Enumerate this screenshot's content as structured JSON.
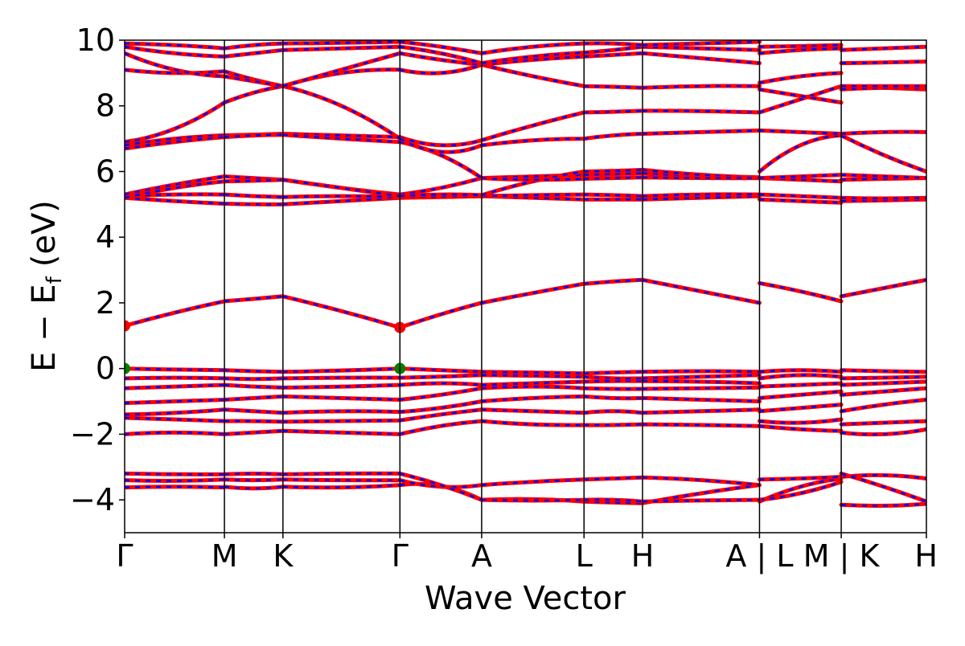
{
  "chart_data": {
    "type": "line",
    "title": "",
    "xlabel": "Wave Vector",
    "ylabel_main": "E − E",
    "ylabel_sub": "f",
    "ylabel_unit": "(eV)",
    "ylim": [
      -5,
      10
    ],
    "yticks": [
      -4,
      -2,
      0,
      2,
      4,
      6,
      8,
      10
    ],
    "ytick_labels": [
      "−4",
      "−2",
      "0",
      "2",
      "4",
      "6",
      "8",
      "10"
    ],
    "xlim": [
      0,
      9.32
    ],
    "kpoints": [
      {
        "label": "Γ",
        "x": 0
      },
      {
        "label": "M",
        "x": 1.16
      },
      {
        "label": "K",
        "x": 1.84
      },
      {
        "label": "Γ",
        "x": 3.2
      },
      {
        "label": "A",
        "x": 4.15
      },
      {
        "label": "L",
        "x": 5.34
      },
      {
        "label": "H",
        "x": 6.02
      },
      {
        "label": "A | L",
        "x": 7.38
      },
      {
        "label": "M | K",
        "x": 8.33
      },
      {
        "label": "H",
        "x": 9.32
      }
    ],
    "segments": [
      {
        "x0": 0.0,
        "x1": 1.16
      },
      {
        "x0": 1.16,
        "x1": 1.84
      },
      {
        "x0": 1.84,
        "x1": 3.2
      },
      {
        "x0": 3.2,
        "x1": 4.15
      },
      {
        "x0": 4.15,
        "x1": 5.34
      },
      {
        "x0": 5.34,
        "x1": 6.02
      },
      {
        "x0": 6.02,
        "x1": 7.38
      },
      {
        "x0": 7.38,
        "x1": 8.33
      },
      {
        "x0": 8.33,
        "x1": 9.32
      }
    ],
    "series": [
      {
        "color": "#ff0000",
        "style": "solid",
        "role": "spin-up"
      },
      {
        "color": "#0000ff",
        "style": "dashed",
        "role": "spin-down"
      }
    ],
    "bands": [
      [
        [
          -3.62,
          -3.6,
          -3.62
        ],
        [
          -3.6,
          -3.65,
          -3.6
        ],
        [
          -3.6,
          -3.62,
          -3.55
        ],
        [
          -3.55,
          -3.58,
          -4.0
        ],
        [
          -4.0,
          -3.98,
          -4.05
        ],
        [
          -4.05,
          -4.08,
          -4.1
        ],
        [
          -4.1,
          -3.8,
          -3.55
        ],
        [
          -4.05,
          -3.6,
          -3.35
        ],
        [
          -4.15,
          -4.18,
          -4.12
        ]
      ],
      [
        [
          -3.4,
          -3.42,
          -3.38
        ],
        [
          -3.38,
          -3.4,
          -3.38
        ],
        [
          -3.38,
          -3.4,
          -3.4
        ],
        [
          -3.4,
          -3.6,
          -3.55
        ],
        [
          -3.55,
          -3.45,
          -3.38
        ],
        [
          -3.38,
          -3.35,
          -3.32
        ],
        [
          -3.32,
          -3.4,
          -3.55
        ],
        [
          -4.0,
          -3.8,
          -3.45
        ],
        [
          -3.3,
          -3.25,
          -3.35
        ]
      ],
      [
        [
          -3.2,
          -3.22,
          -3.22
        ],
        [
          -3.22,
          -3.2,
          -3.22
        ],
        [
          -3.22,
          -3.2,
          -3.2
        ],
        [
          -3.2,
          -3.55,
          -4.0
        ],
        [
          -4.0,
          -4.02,
          -4.0
        ],
        [
          -4.0,
          -4.0,
          -4.05
        ],
        [
          -4.05,
          -4.02,
          -4.0
        ],
        [
          -3.38,
          -3.35,
          -3.3
        ],
        [
          -3.2,
          -3.6,
          -4.05
        ]
      ],
      [
        [
          -2.0,
          -1.95,
          -2.0
        ],
        [
          -2.0,
          -1.95,
          -1.9
        ],
        [
          -1.9,
          -1.95,
          -2.0
        ],
        [
          -2.0,
          -1.75,
          -1.6
        ],
        [
          -1.6,
          -1.7,
          -1.72
        ],
        [
          -1.72,
          -1.72,
          -1.7
        ],
        [
          -1.7,
          -1.72,
          -1.75
        ],
        [
          -1.75,
          -1.85,
          -1.9
        ],
        [
          -1.95,
          -2.0,
          -1.85
        ]
      ],
      [
        [
          -1.5,
          -1.55,
          -1.6
        ],
        [
          -1.6,
          -1.6,
          -1.62
        ],
        [
          -1.62,
          -1.6,
          -1.58
        ],
        [
          -1.58,
          -1.4,
          -1.25
        ],
        [
          -1.25,
          -1.3,
          -1.35
        ],
        [
          -1.35,
          -1.3,
          -1.35
        ],
        [
          -1.35,
          -1.3,
          -1.25
        ],
        [
          -1.6,
          -1.65,
          -1.55
        ],
        [
          -1.7,
          -1.65,
          -1.6
        ]
      ],
      [
        [
          -1.4,
          -1.35,
          -1.25
        ],
        [
          -1.25,
          -1.3,
          -1.35
        ],
        [
          -1.35,
          -1.3,
          -1.32
        ],
        [
          -1.32,
          -1.2,
          -1.0
        ],
        [
          -1.0,
          -0.9,
          -0.85
        ],
        [
          -0.85,
          -0.9,
          -0.9
        ],
        [
          -0.9,
          -0.95,
          -1.0
        ],
        [
          -1.3,
          -1.2,
          -1.1
        ],
        [
          -1.3,
          -1.1,
          -0.95
        ]
      ],
      [
        [
          -1.05,
          -1.0,
          -0.95
        ],
        [
          -0.95,
          -0.9,
          -0.85
        ],
        [
          -0.85,
          -0.9,
          -0.95
        ],
        [
          -0.95,
          -0.8,
          -0.6
        ],
        [
          -0.6,
          -0.55,
          -0.6
        ],
        [
          -0.6,
          -0.62,
          -0.62
        ],
        [
          -0.62,
          -0.6,
          -0.58
        ],
        [
          -0.9,
          -0.8,
          -0.7
        ],
        [
          -0.8,
          -0.7,
          -0.6
        ]
      ],
      [
        [
          -0.6,
          -0.55,
          -0.5
        ],
        [
          -0.5,
          -0.55,
          -0.58
        ],
        [
          -0.58,
          -0.55,
          -0.5
        ],
        [
          -0.5,
          -0.45,
          -0.5
        ],
        [
          -0.5,
          -0.45,
          -0.4
        ],
        [
          -0.4,
          -0.38,
          -0.38
        ],
        [
          -0.38,
          -0.4,
          -0.45
        ],
        [
          -0.55,
          -0.5,
          -0.45
        ],
        [
          -0.5,
          -0.45,
          -0.4
        ]
      ],
      [
        [
          -0.3,
          -0.28,
          -0.3
        ],
        [
          -0.3,
          -0.32,
          -0.3
        ],
        [
          -0.3,
          -0.28,
          -0.28
        ],
        [
          -0.28,
          -0.25,
          -0.2
        ],
        [
          -0.2,
          -0.22,
          -0.25
        ],
        [
          -0.25,
          -0.3,
          -0.3
        ],
        [
          -0.3,
          -0.25,
          -0.2
        ],
        [
          -0.3,
          -0.2,
          -0.25
        ],
        [
          -0.3,
          -0.28,
          -0.25
        ]
      ],
      [
        [
          0.0,
          -0.03,
          -0.05
        ],
        [
          -0.05,
          -0.08,
          -0.1
        ],
        [
          -0.1,
          -0.06,
          0.0
        ],
        [
          0.0,
          -0.05,
          -0.1
        ],
        [
          -0.1,
          -0.12,
          -0.15
        ],
        [
          -0.15,
          -0.12,
          -0.1
        ],
        [
          -0.1,
          -0.08,
          -0.1
        ],
        [
          -0.1,
          -0.05,
          -0.1
        ],
        [
          -0.05,
          -0.08,
          -0.1
        ]
      ],
      [
        [
          1.3,
          1.7,
          2.05
        ],
        [
          2.05,
          2.12,
          2.2
        ],
        [
          2.2,
          1.75,
          1.25
        ],
        [
          1.25,
          1.65,
          2.0
        ],
        [
          2.0,
          2.3,
          2.58
        ],
        [
          2.58,
          2.65,
          2.7
        ],
        [
          2.7,
          2.35,
          2.0
        ],
        [
          2.6,
          2.35,
          2.05
        ],
        [
          2.2,
          2.45,
          2.7
        ]
      ],
      [
        [
          5.2,
          5.1,
          5.02
        ],
        [
          5.02,
          5.0,
          5.0
        ],
        [
          5.0,
          5.1,
          5.2
        ],
        [
          5.2,
          5.22,
          5.25
        ],
        [
          5.25,
          5.2,
          5.15
        ],
        [
          5.15,
          5.15,
          5.15
        ],
        [
          5.15,
          5.2,
          5.25
        ],
        [
          5.15,
          5.1,
          5.05
        ],
        [
          5.1,
          5.12,
          5.15
        ]
      ],
      [
        [
          5.25,
          5.3,
          5.3
        ],
        [
          5.3,
          5.25,
          5.22
        ],
        [
          5.22,
          5.25,
          5.22
        ],
        [
          5.22,
          5.24,
          5.25
        ],
        [
          5.25,
          5.28,
          5.3
        ],
        [
          5.3,
          5.28,
          5.25
        ],
        [
          5.25,
          5.3,
          5.3
        ],
        [
          5.3,
          5.25,
          5.2
        ],
        [
          5.2,
          5.18,
          5.2
        ]
      ],
      [
        [
          5.3,
          5.6,
          5.85
        ],
        [
          5.85,
          5.8,
          5.75
        ],
        [
          5.75,
          5.5,
          5.3
        ],
        [
          5.3,
          5.5,
          5.8
        ],
        [
          5.8,
          5.85,
          5.9
        ],
        [
          5.9,
          5.92,
          5.95
        ],
        [
          5.95,
          5.85,
          5.8
        ],
        [
          5.8,
          5.75,
          5.7
        ],
        [
          5.75,
          5.78,
          5.8
        ]
      ],
      [
        [
          5.2,
          5.5,
          5.7
        ],
        [
          5.7,
          5.72,
          5.75
        ],
        [
          5.75,
          5.5,
          5.25
        ],
        [
          5.25,
          5.3,
          5.28
        ],
        [
          5.28,
          5.7,
          6.0
        ],
        [
          6.0,
          6.02,
          6.05
        ],
        [
          6.05,
          5.9,
          5.82
        ],
        [
          6.0,
          6.8,
          7.1
        ],
        [
          7.1,
          6.5,
          6.0
        ]
      ],
      [
        [
          6.8,
          7.0,
          7.1
        ],
        [
          7.1,
          7.12,
          7.15
        ],
        [
          7.15,
          7.1,
          7.05
        ],
        [
          7.05,
          6.8,
          6.95
        ],
        [
          6.95,
          7.4,
          7.8
        ],
        [
          7.8,
          7.82,
          7.85
        ],
        [
          7.85,
          7.84,
          7.8
        ],
        [
          7.8,
          8.2,
          8.6
        ],
        [
          8.6,
          8.55,
          8.5
        ]
      ],
      [
        [
          6.7,
          6.9,
          7.05
        ],
        [
          7.05,
          7.1,
          7.12
        ],
        [
          7.12,
          7.0,
          6.9
        ],
        [
          6.9,
          6.5,
          5.8
        ],
        [
          5.8,
          5.75,
          5.78
        ],
        [
          5.78,
          5.8,
          5.82
        ],
        [
          5.82,
          5.8,
          5.8
        ],
        [
          5.8,
          5.85,
          5.9
        ],
        [
          5.9,
          5.85,
          5.8
        ]
      ],
      [
        [
          6.9,
          7.3,
          8.1
        ],
        [
          8.1,
          8.4,
          8.6
        ],
        [
          8.6,
          8.0,
          7.0
        ],
        [
          7.0,
          6.6,
          6.8
        ],
        [
          6.8,
          6.95,
          7.0
        ],
        [
          7.0,
          7.1,
          7.15
        ],
        [
          7.15,
          7.2,
          7.25
        ],
        [
          7.25,
          7.2,
          7.15
        ],
        [
          7.15,
          7.2,
          7.2
        ]
      ],
      [
        [
          9.1,
          9.0,
          9.05
        ],
        [
          9.05,
          8.8,
          8.6
        ],
        [
          8.6,
          9.0,
          9.1
        ],
        [
          9.1,
          9.0,
          9.25
        ],
        [
          9.25,
          8.9,
          8.6
        ],
        [
          8.6,
          8.58,
          8.55
        ],
        [
          8.55,
          8.6,
          8.6
        ],
        [
          8.5,
          8.3,
          8.1
        ],
        [
          8.5,
          8.55,
          8.55
        ]
      ],
      [
        [
          9.6,
          9.1,
          8.9
        ],
        [
          8.9,
          8.75,
          8.6
        ],
        [
          8.6,
          9.1,
          9.6
        ],
        [
          9.6,
          9.4,
          9.25
        ],
        [
          9.25,
          9.4,
          9.5
        ],
        [
          9.5,
          9.55,
          9.6
        ],
        [
          9.6,
          9.45,
          9.3
        ],
        [
          8.7,
          8.9,
          9.0
        ],
        [
          8.6,
          8.6,
          8.6
        ]
      ],
      [
        [
          9.8,
          9.6,
          9.5
        ],
        [
          9.5,
          9.6,
          9.7
        ],
        [
          9.7,
          9.75,
          9.8
        ],
        [
          9.8,
          9.6,
          9.3
        ],
        [
          9.3,
          9.5,
          9.62
        ],
        [
          9.62,
          9.7,
          9.8
        ],
        [
          9.8,
          9.75,
          9.7
        ],
        [
          9.6,
          9.7,
          9.75
        ],
        [
          9.3,
          9.32,
          9.35
        ]
      ],
      [
        [
          9.9,
          9.85,
          9.75
        ],
        [
          9.75,
          9.85,
          9.9
        ],
        [
          9.9,
          9.92,
          9.95
        ],
        [
          9.95,
          9.8,
          9.6
        ],
        [
          9.6,
          9.8,
          9.9
        ],
        [
          9.9,
          9.9,
          9.85
        ],
        [
          9.85,
          9.9,
          9.95
        ],
        [
          9.8,
          9.82,
          9.85
        ],
        [
          9.7,
          9.75,
          9.8
        ]
      ]
    ],
    "markers": [
      {
        "x": 0,
        "y": 1.3,
        "color": "#ff0000"
      },
      {
        "x": 3.2,
        "y": 1.25,
        "color": "#ff0000"
      },
      {
        "x": 0,
        "y": 0.0,
        "color": "#008000"
      },
      {
        "x": 3.2,
        "y": 0.0,
        "color": "#008000"
      }
    ]
  }
}
